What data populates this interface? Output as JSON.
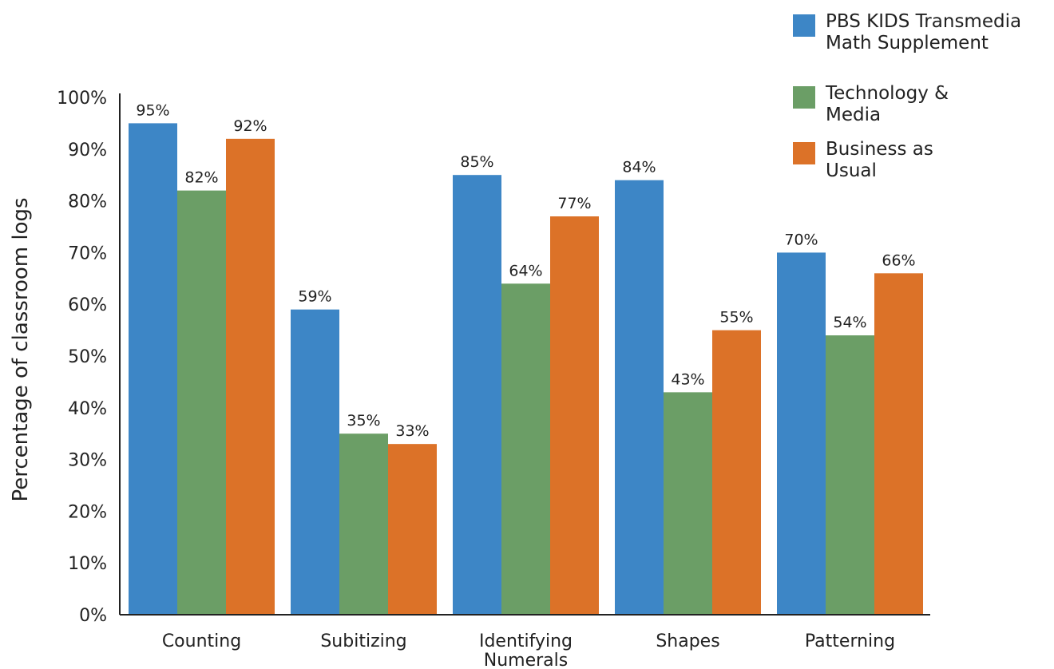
{
  "chart_data": {
    "type": "bar",
    "title": "",
    "xlabel": "",
    "ylabel": "Percentage of classroom logs",
    "ylim": [
      0,
      100
    ],
    "yticks": [
      "0%",
      "10%",
      "20%",
      "30%",
      "40%",
      "50%",
      "60%",
      "70%",
      "80%",
      "90%",
      "100%"
    ],
    "categories": [
      [
        "Counting"
      ],
      [
        "Subitizing"
      ],
      [
        "Identifying",
        "Numerals"
      ],
      [
        "Shapes"
      ],
      [
        "Patterning"
      ]
    ],
    "series": [
      {
        "name_lines": [
          "PBS KIDS Transmedia",
          "Math Supplement"
        ],
        "color": "#3d86c6",
        "values": [
          95,
          59,
          85,
          84,
          70
        ],
        "labels": [
          "95%",
          "59%",
          "85%",
          "84%",
          "70%"
        ]
      },
      {
        "name_lines": [
          "Technology &",
          "Media"
        ],
        "color": "#6b9e66",
        "values": [
          82,
          35,
          64,
          43,
          54
        ],
        "labels": [
          "82%",
          "35%",
          "64%",
          "43%",
          "54%"
        ]
      },
      {
        "name_lines": [
          "Business as",
          "Usual"
        ],
        "color": "#dc7228",
        "values": [
          92,
          33,
          77,
          55,
          66
        ],
        "labels": [
          "92%",
          "33%",
          "77%",
          "55%",
          "66%"
        ]
      }
    ],
    "grid": false,
    "legend_position": "top-right"
  }
}
